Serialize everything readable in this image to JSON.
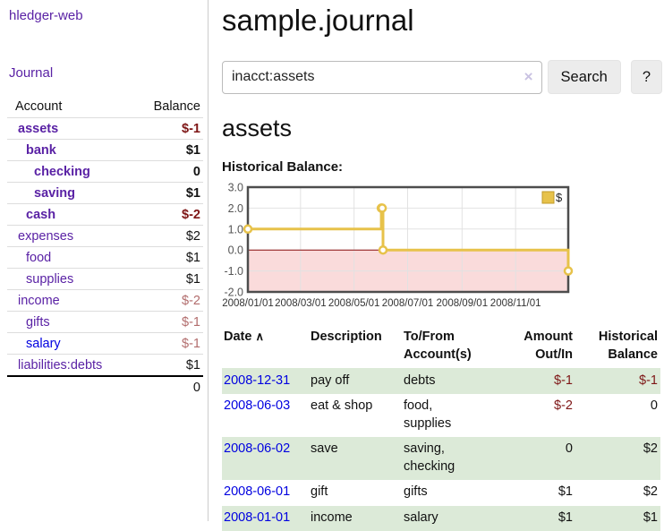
{
  "colors": {
    "purple": "#5a22a5",
    "blue": "#0000e0",
    "negative": "#7e1616",
    "negative_light": "#b26d6d",
    "stripe_green": "#dcead8",
    "gold": "#e7c24a",
    "pink": "#fadbdb",
    "zero_line": "#8c0d0d",
    "grid": "#e2e2e2",
    "chart_border": "#4d4d4d",
    "button_bg": "#ececec"
  },
  "sidebar": {
    "brand": "hledger-web",
    "nav": {
      "journal": "Journal"
    },
    "accounts_table": {
      "headers": {
        "account": "Account",
        "balance": "Balance"
      },
      "rows": [
        {
          "name": "assets",
          "balance": "$-1",
          "indent": 1,
          "bold": true,
          "balance_tone": "negative"
        },
        {
          "name": "bank",
          "balance": "$1",
          "indent": 2,
          "bold": true,
          "balance_tone": "normal"
        },
        {
          "name": "checking",
          "balance": "0",
          "indent": 3,
          "bold": true,
          "balance_tone": "normal"
        },
        {
          "name": "saving",
          "balance": "$1",
          "indent": 3,
          "bold": true,
          "balance_tone": "normal"
        },
        {
          "name": "cash",
          "balance": "$-2",
          "indent": 2,
          "bold": true,
          "balance_tone": "negative"
        },
        {
          "name": "expenses",
          "balance": "$2",
          "indent": 1,
          "bold": false,
          "balance_tone": "normal"
        },
        {
          "name": "food",
          "balance": "$1",
          "indent": 2,
          "bold": false,
          "balance_tone": "normal"
        },
        {
          "name": "supplies",
          "balance": "$1",
          "indent": 2,
          "bold": false,
          "balance_tone": "normal"
        },
        {
          "name": "income",
          "balance": "$-2",
          "indent": 1,
          "bold": false,
          "balance_tone": "negative_light"
        },
        {
          "name": "gifts",
          "balance": "$-1",
          "indent": 2,
          "bold": false,
          "balance_tone": "negative_light"
        },
        {
          "name": "salary",
          "balance": "$-1",
          "indent": 2,
          "bold": false,
          "balance_tone": "negative_light",
          "link_tone": "blue"
        },
        {
          "name": "liabilities:debts",
          "balance": "$1",
          "indent": 1,
          "bold": false,
          "balance_tone": "normal"
        }
      ],
      "total": "0"
    }
  },
  "main": {
    "title": "sample.journal",
    "search": {
      "value": "inacct:assets",
      "clear_icon": "×",
      "button": "Search",
      "help_button": "?"
    },
    "account_heading": "assets",
    "chart_label": "Historical Balance:"
  },
  "chart_data": {
    "type": "line",
    "step": true,
    "title": "Historical Balance",
    "legend": [
      {
        "label": "$",
        "color": "#e7c24a"
      }
    ],
    "legend_position": "top-right",
    "grid": true,
    "negative_region": true,
    "x_range": [
      "2008-01-01",
      "2008-12-31"
    ],
    "ylim": [
      -2,
      3
    ],
    "y_ticks": [
      "3.0",
      "2.0",
      "1.0",
      "0.0",
      "-1.0",
      "-2.0"
    ],
    "x_ticks": [
      {
        "date": "2008-01-01",
        "label": "2008/01/01"
      },
      {
        "date": "2008-03-01",
        "label": "2008/03/01"
      },
      {
        "date": "2008-05-01",
        "label": "2008/05/01"
      },
      {
        "date": "2008-07-01",
        "label": "2008/07/01"
      },
      {
        "date": "2008-09-01",
        "label": "2008/09/01"
      },
      {
        "date": "2008-11-01",
        "label": "2008/11/01"
      }
    ],
    "series": [
      {
        "name": "$",
        "points": [
          [
            "2008-01-01",
            1
          ],
          [
            "2008-06-01",
            2
          ],
          [
            "2008-06-02",
            2
          ],
          [
            "2008-06-03",
            0
          ],
          [
            "2008-12-31",
            -1
          ]
        ]
      }
    ]
  },
  "register": {
    "sort_indicator": "∧",
    "headers": [
      {
        "lines": [
          "Date"
        ],
        "align": "left",
        "sortable": true
      },
      {
        "lines": [
          "Description"
        ],
        "align": "left"
      },
      {
        "lines": [
          "To/From",
          "Account(s)"
        ],
        "align": "left"
      },
      {
        "lines": [
          "Amount",
          "Out/In"
        ],
        "align": "right"
      },
      {
        "lines": [
          "Historical",
          "Balance"
        ],
        "align": "right"
      }
    ],
    "rows": [
      {
        "date": "2008-12-31",
        "description": "pay off",
        "accounts": "debts",
        "amount": "$-1",
        "balance": "$-1",
        "amount_neg": true,
        "balance_neg": true
      },
      {
        "date": "2008-06-03",
        "description": "eat & shop",
        "accounts": "food, supplies",
        "amount": "$-2",
        "balance": "0",
        "amount_neg": true,
        "balance_neg": false
      },
      {
        "date": "2008-06-02",
        "description": "save",
        "accounts": "saving, checking",
        "amount": "0",
        "balance": "$2",
        "amount_neg": false,
        "balance_neg": false
      },
      {
        "date": "2008-06-01",
        "description": "gift",
        "accounts": "gifts",
        "amount": "$1",
        "balance": "$2",
        "amount_neg": false,
        "balance_neg": false
      },
      {
        "date": "2008-01-01",
        "description": "income",
        "accounts": "salary",
        "amount": "$1",
        "balance": "$1",
        "amount_neg": false,
        "balance_neg": false
      }
    ]
  }
}
